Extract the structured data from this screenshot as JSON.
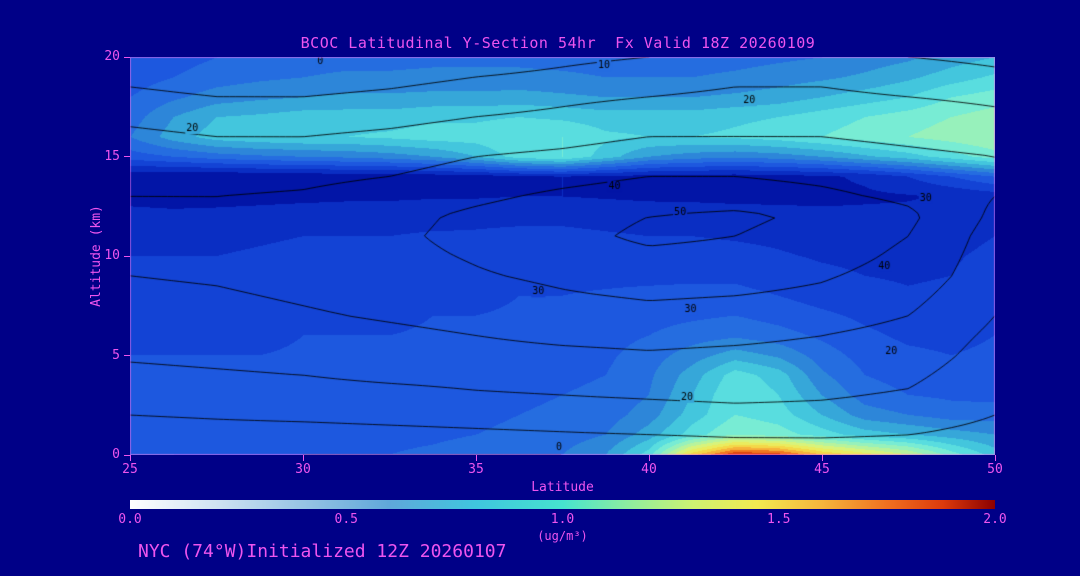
{
  "title": "BCOC Latitudinal Y-Section 54hr  Fx Valid 18Z 20260109",
  "footer": "NYC (74°W)Initialized 12Z 20260107",
  "colors": {
    "background": "#000087",
    "text_magenta": "#ee55ee",
    "contour_line": "#000000",
    "plot_frame": "rgba(238,110,238,0.55)"
  },
  "axes": {
    "x": {
      "label": "Latitude",
      "ticks": [
        25,
        30,
        35,
        40,
        45,
        50
      ],
      "range": [
        25,
        50
      ]
    },
    "y": {
      "label": "Altitude (km)",
      "ticks": [
        0,
        5,
        10,
        15,
        20
      ],
      "range": [
        0,
        20
      ]
    }
  },
  "colorbar": {
    "units": "(ug/m³)",
    "ticks": [
      "0.0",
      "0.5",
      "1.0",
      "1.5",
      "2.0"
    ],
    "range": [
      0,
      2
    ],
    "stops": [
      {
        "v": 0.0,
        "c": "#ffffff"
      },
      {
        "v": 0.2,
        "c": "#cfe3f2"
      },
      {
        "v": 0.4,
        "c": "#97c4e4"
      },
      {
        "v": 0.6,
        "c": "#5fa8da"
      },
      {
        "v": 0.8,
        "c": "#3fc6de"
      },
      {
        "v": 1.0,
        "c": "#46e3cf"
      },
      {
        "v": 1.15,
        "c": "#8deda0"
      },
      {
        "v": 1.3,
        "c": "#cdf272"
      },
      {
        "v": 1.45,
        "c": "#f2ea50"
      },
      {
        "v": 1.6,
        "c": "#f5b53c"
      },
      {
        "v": 1.75,
        "c": "#f07020"
      },
      {
        "v": 1.88,
        "c": "#dd3a0c"
      },
      {
        "v": 2.0,
        "c": "#8a0000"
      }
    ]
  },
  "chart_data": {
    "type": "heatmap",
    "title": "BCOC Latitudinal Y-Section 54hr  Fx Valid 18Z 20260109",
    "xlabel": "Latitude",
    "ylabel": "Altitude (km)",
    "units": "ug/m3",
    "xlim": [
      25,
      50
    ],
    "ylim": [
      0,
      20
    ],
    "x_latitudes": [
      25,
      26.25,
      27.5,
      28.75,
      30,
      31.25,
      32.5,
      33.75,
      35,
      36.25,
      37.5,
      38.75,
      40,
      41.25,
      42.5,
      43.75,
      45,
      46.25,
      47.5,
      48.75,
      50
    ],
    "y_altitudes_km": [
      0,
      1,
      2,
      3,
      4,
      5,
      6,
      7,
      8,
      9,
      10,
      11,
      12,
      13,
      14,
      15,
      16,
      17,
      18,
      19,
      20
    ],
    "fill_values": [
      [
        0.5,
        0.5,
        0.48,
        0.48,
        0.5,
        0.5,
        0.5,
        0.52,
        0.55,
        0.55,
        0.6,
        0.7,
        0.95,
        1.55,
        1.9,
        1.85,
        1.6,
        1.45,
        1.3,
        1.05,
        0.85
      ],
      [
        0.47,
        0.46,
        0.45,
        0.45,
        0.46,
        0.46,
        0.47,
        0.48,
        0.5,
        0.52,
        0.55,
        0.6,
        0.75,
        0.95,
        1.1,
        1.05,
        0.95,
        0.85,
        0.8,
        0.75,
        0.7
      ],
      [
        0.45,
        0.44,
        0.43,
        0.43,
        0.44,
        0.45,
        0.45,
        0.46,
        0.48,
        0.5,
        0.52,
        0.55,
        0.65,
        0.85,
        1.0,
        0.95,
        0.8,
        0.65,
        0.6,
        0.55,
        0.55
      ],
      [
        0.44,
        0.43,
        0.42,
        0.42,
        0.43,
        0.44,
        0.44,
        0.45,
        0.46,
        0.48,
        0.5,
        0.52,
        0.6,
        0.8,
        1.0,
        0.9,
        0.7,
        0.55,
        0.5,
        0.48,
        0.47
      ],
      [
        0.42,
        0.42,
        0.41,
        0.41,
        0.42,
        0.43,
        0.43,
        0.44,
        0.45,
        0.46,
        0.48,
        0.5,
        0.58,
        0.75,
        0.95,
        0.85,
        0.62,
        0.5,
        0.46,
        0.44,
        0.44
      ],
      [
        0.4,
        0.4,
        0.4,
        0.4,
        0.41,
        0.42,
        0.42,
        0.43,
        0.44,
        0.45,
        0.46,
        0.48,
        0.55,
        0.65,
        0.75,
        0.68,
        0.55,
        0.46,
        0.42,
        0.4,
        0.42
      ],
      [
        0.38,
        0.38,
        0.38,
        0.38,
        0.4,
        0.4,
        0.4,
        0.41,
        0.42,
        0.43,
        0.44,
        0.46,
        0.5,
        0.55,
        0.58,
        0.54,
        0.48,
        0.42,
        0.38,
        0.37,
        0.4
      ],
      [
        0.36,
        0.36,
        0.36,
        0.36,
        0.38,
        0.38,
        0.38,
        0.4,
        0.4,
        0.41,
        0.42,
        0.44,
        0.46,
        0.48,
        0.5,
        0.46,
        0.42,
        0.38,
        0.35,
        0.34,
        0.38
      ],
      [
        0.34,
        0.34,
        0.34,
        0.35,
        0.36,
        0.36,
        0.37,
        0.38,
        0.38,
        0.4,
        0.4,
        0.41,
        0.42,
        0.43,
        0.43,
        0.4,
        0.36,
        0.33,
        0.31,
        0.32,
        0.36
      ],
      [
        0.32,
        0.32,
        0.32,
        0.33,
        0.34,
        0.34,
        0.35,
        0.36,
        0.36,
        0.37,
        0.38,
        0.38,
        0.38,
        0.38,
        0.38,
        0.35,
        0.32,
        0.3,
        0.29,
        0.3,
        0.34
      ],
      [
        0.3,
        0.3,
        0.3,
        0.31,
        0.32,
        0.32,
        0.33,
        0.34,
        0.34,
        0.35,
        0.35,
        0.35,
        0.34,
        0.34,
        0.33,
        0.31,
        0.29,
        0.28,
        0.27,
        0.29,
        0.32
      ],
      [
        0.28,
        0.27,
        0.28,
        0.29,
        0.3,
        0.3,
        0.3,
        0.31,
        0.31,
        0.32,
        0.32,
        0.31,
        0.3,
        0.3,
        0.29,
        0.28,
        0.26,
        0.25,
        0.26,
        0.27,
        0.3
      ],
      [
        0.24,
        0.23,
        0.24,
        0.25,
        0.26,
        0.26,
        0.27,
        0.27,
        0.28,
        0.28,
        0.28,
        0.27,
        0.26,
        0.25,
        0.25,
        0.24,
        0.23,
        0.23,
        0.23,
        0.25,
        0.27
      ],
      [
        0.16,
        0.15,
        0.15,
        0.16,
        0.17,
        0.18,
        0.18,
        0.19,
        0.19,
        0.2,
        0.2,
        0.19,
        0.18,
        0.18,
        0.17,
        0.17,
        0.17,
        0.18,
        0.19,
        0.21,
        0.24
      ],
      [
        0.12,
        0.11,
        0.1,
        0.11,
        0.12,
        0.13,
        0.13,
        0.14,
        0.15,
        0.18,
        0.2,
        0.18,
        0.16,
        0.15,
        0.15,
        0.16,
        0.18,
        0.22,
        0.3,
        0.4,
        0.5
      ],
      [
        0.45,
        0.5,
        0.55,
        0.58,
        0.6,
        0.62,
        0.65,
        0.7,
        0.8,
        0.95,
        1.0,
        0.85,
        0.7,
        0.65,
        0.62,
        0.65,
        0.7,
        0.78,
        0.85,
        0.95,
        1.05
      ],
      [
        0.6,
        0.75,
        0.85,
        0.88,
        0.9,
        0.9,
        0.92,
        0.95,
        0.95,
        1.0,
        1.0,
        0.92,
        0.9,
        0.9,
        0.92,
        0.95,
        1.0,
        1.05,
        1.1,
        1.15,
        1.2
      ],
      [
        0.55,
        0.7,
        0.8,
        0.82,
        0.85,
        0.85,
        0.85,
        0.88,
        0.88,
        0.9,
        0.88,
        0.85,
        0.85,
        0.85,
        0.88,
        0.9,
        0.95,
        1.0,
        1.05,
        1.1,
        1.15
      ],
      [
        0.5,
        0.58,
        0.65,
        0.68,
        0.7,
        0.72,
        0.72,
        0.73,
        0.73,
        0.74,
        0.72,
        0.7,
        0.7,
        0.7,
        0.72,
        0.75,
        0.8,
        0.85,
        0.9,
        1.0,
        1.05
      ],
      [
        0.45,
        0.5,
        0.55,
        0.58,
        0.6,
        0.62,
        0.62,
        0.63,
        0.63,
        0.63,
        0.62,
        0.6,
        0.6,
        0.6,
        0.62,
        0.65,
        0.68,
        0.72,
        0.78,
        0.85,
        0.92
      ],
      [
        0.42,
        0.46,
        0.5,
        0.52,
        0.55,
        0.56,
        0.56,
        0.57,
        0.57,
        0.57,
        0.56,
        0.55,
        0.55,
        0.55,
        0.56,
        0.58,
        0.6,
        0.64,
        0.68,
        0.75,
        0.8
      ]
    ],
    "fill_colormap_stops": [
      {
        "v": 0.0,
        "c": "#000085"
      },
      {
        "v": 0.12,
        "c": "#000d9e"
      },
      {
        "v": 0.22,
        "c": "#0827bd"
      },
      {
        "v": 0.32,
        "c": "#103dd2"
      },
      {
        "v": 0.42,
        "c": "#1a52dd"
      },
      {
        "v": 0.52,
        "c": "#2366e2"
      },
      {
        "v": 0.62,
        "c": "#2a7cda"
      },
      {
        "v": 0.72,
        "c": "#339dd8"
      },
      {
        "v": 0.82,
        "c": "#3ebedc"
      },
      {
        "v": 0.92,
        "c": "#4fd8e0"
      },
      {
        "v": 1.02,
        "c": "#6feadb"
      },
      {
        "v": 1.18,
        "c": "#a0f2b4"
      },
      {
        "v": 1.34,
        "c": "#d6f47e"
      },
      {
        "v": 1.5,
        "c": "#f3e94f"
      },
      {
        "v": 1.65,
        "c": "#f6b23a"
      },
      {
        "v": 1.8,
        "c": "#ee5a15"
      },
      {
        "v": 1.93,
        "c": "#c62309"
      },
      {
        "v": 2.0,
        "c": "#8a0000"
      }
    ],
    "contour_overlay": {
      "levels": [
        0,
        10,
        20,
        30,
        40,
        50
      ],
      "x_latitudes": [
        25,
        27.5,
        30,
        32.5,
        35,
        37.5,
        40,
        42.5,
        45,
        47.5,
        50
      ],
      "y_altitudes_km": [
        0,
        1,
        2,
        3,
        4,
        5,
        6,
        7,
        8,
        9,
        10,
        11,
        12,
        13,
        14,
        15,
        16,
        17,
        18,
        19,
        20
      ],
      "values": [
        [
          1,
          1,
          0,
          0,
          0,
          0,
          1,
          3,
          4,
          4,
          3
        ],
        [
          5,
          6,
          6,
          7,
          8,
          9,
          10,
          11,
          11,
          10,
          7
        ],
        [
          10,
          11,
          12,
          13,
          14,
          15,
          16,
          17,
          17,
          15,
          10
        ],
        [
          14,
          15,
          16,
          17,
          19,
          20,
          21,
          22,
          21,
          19,
          12
        ],
        [
          18,
          19,
          20,
          22,
          23,
          24,
          25,
          25,
          24,
          22,
          14
        ],
        [
          21,
          22,
          23,
          25,
          27,
          28,
          29,
          28,
          27,
          25,
          16
        ],
        [
          24,
          25,
          26,
          28,
          30,
          32,
          33,
          32,
          30,
          27,
          18
        ],
        [
          26,
          27,
          29,
          31,
          33,
          35,
          37,
          36,
          34,
          30,
          20
        ],
        [
          28,
          29,
          31,
          33,
          36,
          39,
          41,
          40,
          38,
          33,
          22
        ],
        [
          30,
          31,
          33,
          35,
          39,
          42,
          45,
          44,
          41,
          36,
          24
        ],
        [
          32,
          32,
          34,
          37,
          41,
          45,
          48,
          47,
          44,
          38,
          25
        ],
        [
          33,
          33,
          35,
          38,
          43,
          47,
          52,
          50,
          46,
          40,
          26
        ],
        [
          32,
          32,
          34,
          37,
          42,
          46,
          50,
          52,
          48,
          42,
          28
        ],
        [
          30,
          30,
          31,
          34,
          38,
          42,
          45,
          45,
          42,
          38,
          30
        ],
        [
          28,
          27,
          28,
          30,
          34,
          37,
          40,
          40,
          38,
          35,
          32
        ],
        [
          25,
          24,
          24,
          26,
          30,
          32,
          35,
          35,
          34,
          32,
          30
        ],
        [
          22,
          20,
          20,
          22,
          25,
          27,
          30,
          30,
          30,
          28,
          26
        ],
        [
          18,
          16,
          15,
          17,
          20,
          22,
          25,
          26,
          26,
          25,
          22
        ],
        [
          12,
          10,
          10,
          12,
          15,
          18,
          20,
          22,
          22,
          20,
          18
        ],
        [
          8,
          6,
          5,
          7,
          10,
          12,
          15,
          18,
          18,
          15,
          12
        ],
        [
          5,
          3,
          0,
          2,
          5,
          8,
          10,
          12,
          12,
          10,
          8
        ]
      ],
      "labels": [
        {
          "text": "0",
          "lat": 30.5,
          "alt": 19.8
        },
        {
          "text": "10",
          "lat": 38.7,
          "alt": 19.6
        },
        {
          "text": "20",
          "lat": 42.9,
          "alt": 17.8
        },
        {
          "text": "20",
          "lat": 26.8,
          "alt": 16.4
        },
        {
          "text": "30",
          "lat": 48.0,
          "alt": 12.9
        },
        {
          "text": "40",
          "lat": 39.0,
          "alt": 13.5
        },
        {
          "text": "50",
          "lat": 40.9,
          "alt": 12.2
        },
        {
          "text": "40",
          "lat": 46.8,
          "alt": 9.5
        },
        {
          "text": "30",
          "lat": 41.2,
          "alt": 7.3
        },
        {
          "text": "30",
          "lat": 36.8,
          "alt": 8.2
        },
        {
          "text": "20",
          "lat": 41.1,
          "alt": 2.9
        },
        {
          "text": "20",
          "lat": 47.0,
          "alt": 5.2
        },
        {
          "text": "0",
          "lat": 37.4,
          "alt": 0.4
        }
      ]
    }
  }
}
